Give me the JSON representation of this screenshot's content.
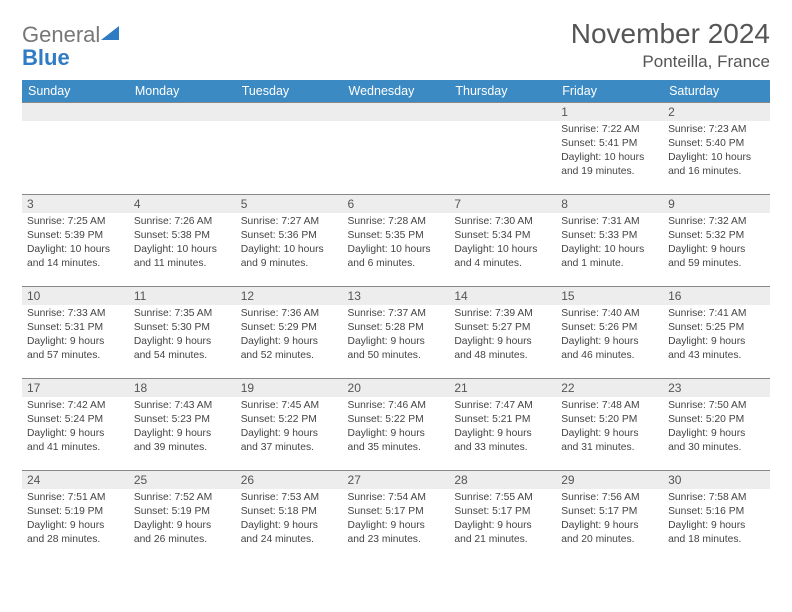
{
  "logo": {
    "text1": "General",
    "text2": "Blue",
    "shape_color": "#2f7bc4"
  },
  "title": "November 2024",
  "location": "Ponteilla, France",
  "header_bg": "#3b8ac4",
  "daynum_bg": "#ededed",
  "border_color": "#888888",
  "days_of_week": [
    "Sunday",
    "Monday",
    "Tuesday",
    "Wednesday",
    "Thursday",
    "Friday",
    "Saturday"
  ],
  "weeks": [
    [
      null,
      null,
      null,
      null,
      null,
      {
        "n": "1",
        "sunrise": "7:22 AM",
        "sunset": "5:41 PM",
        "daylight": "10 hours and 19 minutes."
      },
      {
        "n": "2",
        "sunrise": "7:23 AM",
        "sunset": "5:40 PM",
        "daylight": "10 hours and 16 minutes."
      }
    ],
    [
      {
        "n": "3",
        "sunrise": "7:25 AM",
        "sunset": "5:39 PM",
        "daylight": "10 hours and 14 minutes."
      },
      {
        "n": "4",
        "sunrise": "7:26 AM",
        "sunset": "5:38 PM",
        "daylight": "10 hours and 11 minutes."
      },
      {
        "n": "5",
        "sunrise": "7:27 AM",
        "sunset": "5:36 PM",
        "daylight": "10 hours and 9 minutes."
      },
      {
        "n": "6",
        "sunrise": "7:28 AM",
        "sunset": "5:35 PM",
        "daylight": "10 hours and 6 minutes."
      },
      {
        "n": "7",
        "sunrise": "7:30 AM",
        "sunset": "5:34 PM",
        "daylight": "10 hours and 4 minutes."
      },
      {
        "n": "8",
        "sunrise": "7:31 AM",
        "sunset": "5:33 PM",
        "daylight": "10 hours and 1 minute."
      },
      {
        "n": "9",
        "sunrise": "7:32 AM",
        "sunset": "5:32 PM",
        "daylight": "9 hours and 59 minutes."
      }
    ],
    [
      {
        "n": "10",
        "sunrise": "7:33 AM",
        "sunset": "5:31 PM",
        "daylight": "9 hours and 57 minutes."
      },
      {
        "n": "11",
        "sunrise": "7:35 AM",
        "sunset": "5:30 PM",
        "daylight": "9 hours and 54 minutes."
      },
      {
        "n": "12",
        "sunrise": "7:36 AM",
        "sunset": "5:29 PM",
        "daylight": "9 hours and 52 minutes."
      },
      {
        "n": "13",
        "sunrise": "7:37 AM",
        "sunset": "5:28 PM",
        "daylight": "9 hours and 50 minutes."
      },
      {
        "n": "14",
        "sunrise": "7:39 AM",
        "sunset": "5:27 PM",
        "daylight": "9 hours and 48 minutes."
      },
      {
        "n": "15",
        "sunrise": "7:40 AM",
        "sunset": "5:26 PM",
        "daylight": "9 hours and 46 minutes."
      },
      {
        "n": "16",
        "sunrise": "7:41 AM",
        "sunset": "5:25 PM",
        "daylight": "9 hours and 43 minutes."
      }
    ],
    [
      {
        "n": "17",
        "sunrise": "7:42 AM",
        "sunset": "5:24 PM",
        "daylight": "9 hours and 41 minutes."
      },
      {
        "n": "18",
        "sunrise": "7:43 AM",
        "sunset": "5:23 PM",
        "daylight": "9 hours and 39 minutes."
      },
      {
        "n": "19",
        "sunrise": "7:45 AM",
        "sunset": "5:22 PM",
        "daylight": "9 hours and 37 minutes."
      },
      {
        "n": "20",
        "sunrise": "7:46 AM",
        "sunset": "5:22 PM",
        "daylight": "9 hours and 35 minutes."
      },
      {
        "n": "21",
        "sunrise": "7:47 AM",
        "sunset": "5:21 PM",
        "daylight": "9 hours and 33 minutes."
      },
      {
        "n": "22",
        "sunrise": "7:48 AM",
        "sunset": "5:20 PM",
        "daylight": "9 hours and 31 minutes."
      },
      {
        "n": "23",
        "sunrise": "7:50 AM",
        "sunset": "5:20 PM",
        "daylight": "9 hours and 30 minutes."
      }
    ],
    [
      {
        "n": "24",
        "sunrise": "7:51 AM",
        "sunset": "5:19 PM",
        "daylight": "9 hours and 28 minutes."
      },
      {
        "n": "25",
        "sunrise": "7:52 AM",
        "sunset": "5:19 PM",
        "daylight": "9 hours and 26 minutes."
      },
      {
        "n": "26",
        "sunrise": "7:53 AM",
        "sunset": "5:18 PM",
        "daylight": "9 hours and 24 minutes."
      },
      {
        "n": "27",
        "sunrise": "7:54 AM",
        "sunset": "5:17 PM",
        "daylight": "9 hours and 23 minutes."
      },
      {
        "n": "28",
        "sunrise": "7:55 AM",
        "sunset": "5:17 PM",
        "daylight": "9 hours and 21 minutes."
      },
      {
        "n": "29",
        "sunrise": "7:56 AM",
        "sunset": "5:17 PM",
        "daylight": "9 hours and 20 minutes."
      },
      {
        "n": "30",
        "sunrise": "7:58 AM",
        "sunset": "5:16 PM",
        "daylight": "9 hours and 18 minutes."
      }
    ]
  ],
  "labels": {
    "sunrise": "Sunrise:",
    "sunset": "Sunset:",
    "daylight": "Daylight:"
  }
}
